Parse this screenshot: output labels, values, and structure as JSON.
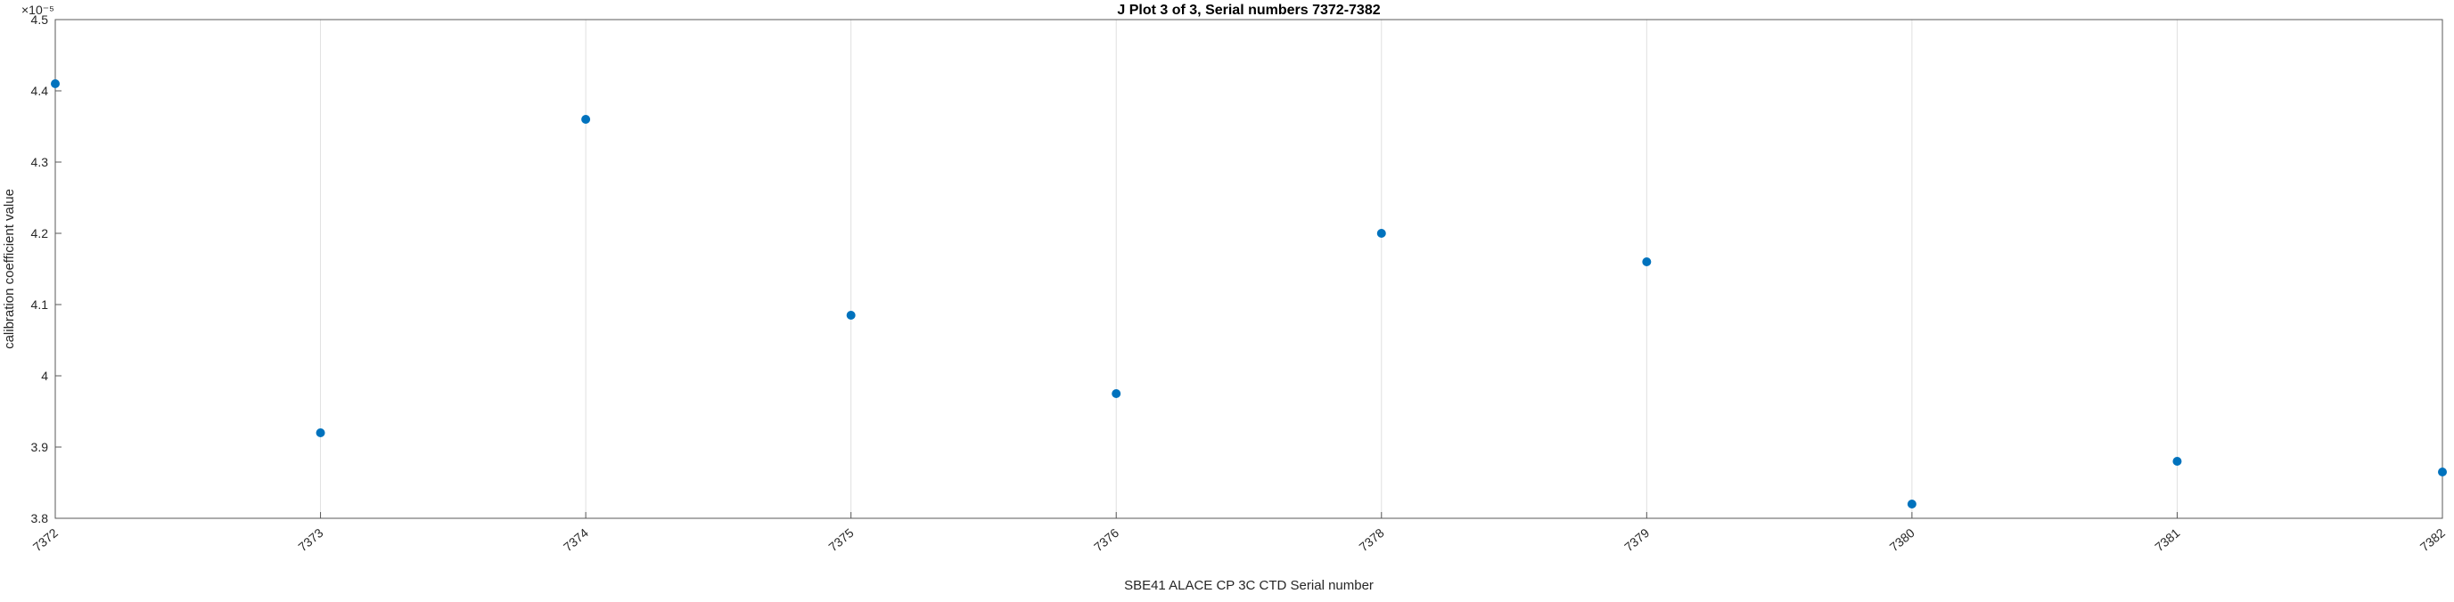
{
  "chart_data": {
    "type": "scatter",
    "title": "J Plot 3 of 3, Serial numbers 7372-7382",
    "xlabel": "SBE41 ALACE CP 3C CTD Serial number",
    "ylabel": "calibration coefficient value",
    "y_multiplier_label": "×10⁻⁵",
    "categories": [
      "7372",
      "7373",
      "7374",
      "7375",
      "7376",
      "7378",
      "7379",
      "7380",
      "7381",
      "7382"
    ],
    "values": [
      4.41,
      3.92,
      4.36,
      4.085,
      3.975,
      4.2,
      4.16,
      3.82,
      3.88,
      3.865
    ],
    "ylim": [
      3.8,
      4.5
    ],
    "yticks": [
      3.8,
      3.9,
      4,
      4.1,
      4.2,
      4.3,
      4.4,
      4.5
    ],
    "ytick_labels": [
      "3.8",
      "3.9",
      "4",
      "4.1",
      "4.2",
      "4.3",
      "4.4",
      "4.5"
    ],
    "xtick_angle": -40,
    "grid": {
      "x": true,
      "y": false
    },
    "marker_color": "#0072BD",
    "axis_color": "#595959",
    "grid_color": "#e0e0e0"
  }
}
